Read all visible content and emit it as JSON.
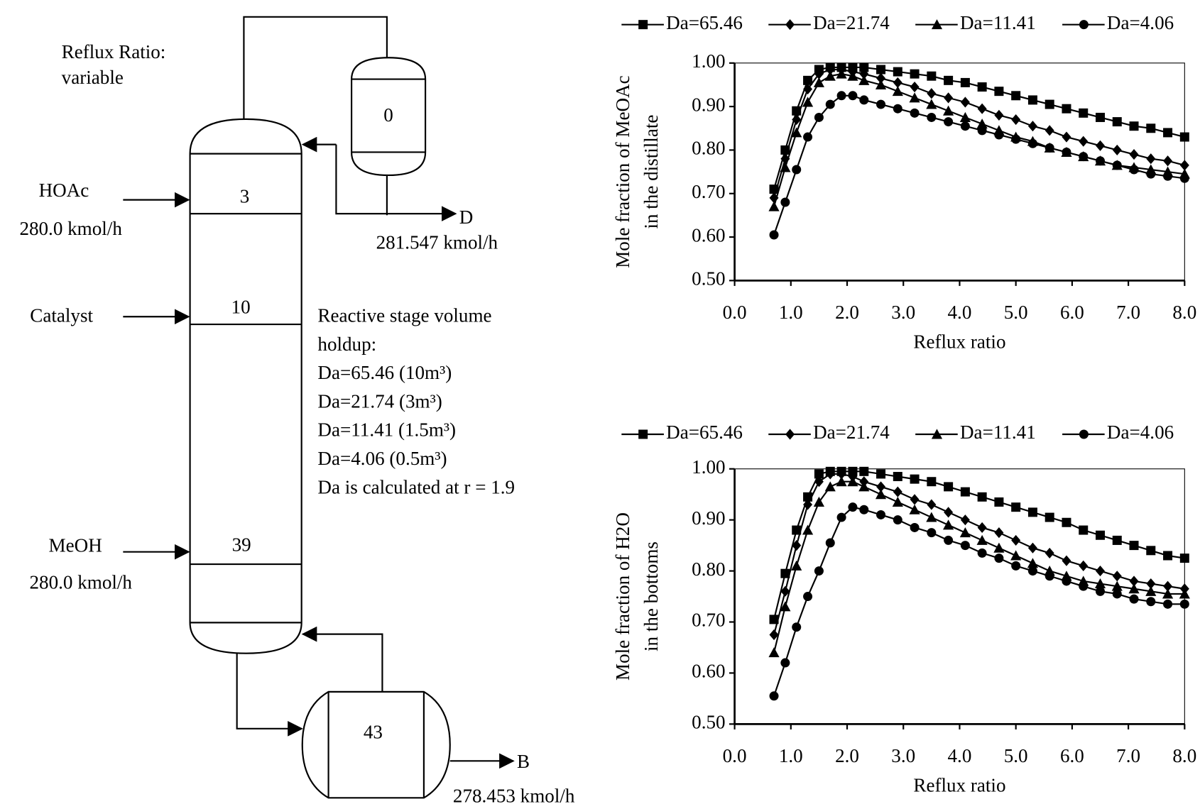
{
  "diagram": {
    "reflux_label": "Reflux Ratio:",
    "reflux_value": "variable",
    "condenser": "0",
    "reboiler": "43",
    "stages": [
      "3",
      "10",
      "39"
    ],
    "feeds": [
      {
        "name": "HOAc",
        "rate": "280.0 kmol/h"
      },
      {
        "name": "Catalyst"
      },
      {
        "name": "MeOH",
        "rate": "280.0 kmol/h"
      }
    ],
    "distillate": {
      "name": "D",
      "rate": "281.547 kmol/h"
    },
    "bottoms": {
      "name": "B",
      "rate": "278.453 kmol/h"
    },
    "holdup": [
      "Reactive stage volume",
      "holdup:",
      "Da=65.46 (10m³)",
      "Da=21.74 (3m³)",
      "Da=11.41 (1.5m³)",
      "Da=4.06 (0.5m³)",
      "Da is calculated at r = 1.9"
    ]
  },
  "chart_data": [
    {
      "type": "line",
      "xlabel": "Reflux ratio",
      "ylabel": [
        "Mole fraction of MeOAc",
        "in the distillate"
      ],
      "xlim": [
        0,
        8
      ],
      "ylim": [
        0.5,
        1
      ],
      "xticks": [
        {
          "value": 0,
          "label": "0.0"
        },
        {
          "value": 1,
          "label": "1.0"
        },
        {
          "value": 2,
          "label": "2.0"
        },
        {
          "value": 3,
          "label": "3.0"
        },
        {
          "value": 4,
          "label": "4.0"
        },
        {
          "value": 5,
          "label": "5.0"
        },
        {
          "value": 6,
          "label": "6.0"
        },
        {
          "value": 7,
          "label": "7.0"
        },
        {
          "value": 8,
          "label": "8.0"
        }
      ],
      "yticks": [
        {
          "value": 0.5,
          "label": "0.50"
        },
        {
          "value": 0.6,
          "label": "0.60"
        },
        {
          "value": 0.7,
          "label": "0.70"
        },
        {
          "value": 0.8,
          "label": "0.80"
        },
        {
          "value": 0.9,
          "label": "0.90"
        },
        {
          "value": 1,
          "label": "1.00"
        }
      ],
      "x": [
        0.7,
        0.9,
        1.1,
        1.3,
        1.5,
        1.7,
        1.9,
        2.1,
        2.3,
        2.6,
        2.9,
        3.2,
        3.5,
        3.8,
        4.1,
        4.4,
        4.7,
        5.0,
        5.3,
        5.6,
        5.9,
        6.2,
        6.5,
        6.8,
        7.1,
        7.4,
        7.7,
        8.0
      ],
      "series": [
        {
          "name": "Da=65.46",
          "color": "#000000",
          "marker": "square",
          "values": [
            0.71,
            0.8,
            0.89,
            0.96,
            0.985,
            0.99,
            0.99,
            0.99,
            0.99,
            0.985,
            0.98,
            0.975,
            0.97,
            0.96,
            0.955,
            0.945,
            0.935,
            0.925,
            0.915,
            0.905,
            0.895,
            0.885,
            0.875,
            0.865,
            0.855,
            0.85,
            0.84,
            0.83
          ]
        },
        {
          "name": "Da=21.74",
          "color": "#000000",
          "marker": "diamond",
          "values": [
            0.69,
            0.78,
            0.87,
            0.94,
            0.975,
            0.985,
            0.985,
            0.98,
            0.975,
            0.965,
            0.955,
            0.945,
            0.93,
            0.92,
            0.91,
            0.895,
            0.88,
            0.87,
            0.855,
            0.845,
            0.83,
            0.82,
            0.81,
            0.8,
            0.79,
            0.78,
            0.775,
            0.765
          ]
        },
        {
          "name": "Da=11.41",
          "color": "#000000",
          "marker": "triangle",
          "values": [
            0.67,
            0.76,
            0.84,
            0.91,
            0.955,
            0.97,
            0.975,
            0.97,
            0.96,
            0.95,
            0.935,
            0.92,
            0.905,
            0.89,
            0.875,
            0.86,
            0.845,
            0.83,
            0.82,
            0.805,
            0.795,
            0.785,
            0.775,
            0.765,
            0.76,
            0.755,
            0.75,
            0.745
          ]
        },
        {
          "name": "Da=4.06",
          "color": "#000000",
          "marker": "circle",
          "values": [
            0.605,
            0.68,
            0.755,
            0.83,
            0.875,
            0.905,
            0.925,
            0.925,
            0.915,
            0.905,
            0.895,
            0.885,
            0.875,
            0.865,
            0.855,
            0.845,
            0.835,
            0.825,
            0.815,
            0.805,
            0.795,
            0.785,
            0.775,
            0.765,
            0.755,
            0.745,
            0.74,
            0.735
          ]
        }
      ]
    },
    {
      "type": "line",
      "xlabel": "Reflux ratio",
      "ylabel": [
        "Mole fraction of H2O",
        "in the bottoms"
      ],
      "xlim": [
        0,
        8
      ],
      "ylim": [
        0.5,
        1
      ],
      "xticks": [
        {
          "value": 0,
          "label": "0.0"
        },
        {
          "value": 1,
          "label": "1.0"
        },
        {
          "value": 2,
          "label": "2.0"
        },
        {
          "value": 3,
          "label": "3.0"
        },
        {
          "value": 4,
          "label": "4.0"
        },
        {
          "value": 5,
          "label": "5.0"
        },
        {
          "value": 6,
          "label": "6.0"
        },
        {
          "value": 7,
          "label": "7.0"
        },
        {
          "value": 8,
          "label": "8.0"
        }
      ],
      "yticks": [
        {
          "value": 0.5,
          "label": "0.50"
        },
        {
          "value": 0.6,
          "label": "0.60"
        },
        {
          "value": 0.7,
          "label": "0.70"
        },
        {
          "value": 0.8,
          "label": "0.80"
        },
        {
          "value": 0.9,
          "label": "0.90"
        },
        {
          "value": 1,
          "label": "1.00"
        }
      ],
      "x": [
        0.7,
        0.9,
        1.1,
        1.3,
        1.5,
        1.7,
        1.9,
        2.1,
        2.3,
        2.6,
        2.9,
        3.2,
        3.5,
        3.8,
        4.1,
        4.4,
        4.7,
        5.0,
        5.3,
        5.6,
        5.9,
        6.2,
        6.5,
        6.8,
        7.1,
        7.4,
        7.7,
        8.0
      ],
      "series": [
        {
          "name": "Da=65.46",
          "color": "#000000",
          "marker": "square",
          "values": [
            0.705,
            0.795,
            0.88,
            0.945,
            0.99,
            0.995,
            0.995,
            0.995,
            0.995,
            0.99,
            0.985,
            0.98,
            0.975,
            0.965,
            0.955,
            0.945,
            0.935,
            0.925,
            0.915,
            0.905,
            0.895,
            0.88,
            0.87,
            0.86,
            0.85,
            0.84,
            0.83,
            0.825
          ]
        },
        {
          "name": "Da=21.74",
          "color": "#000000",
          "marker": "diamond",
          "values": [
            0.675,
            0.76,
            0.85,
            0.93,
            0.975,
            0.99,
            0.99,
            0.985,
            0.975,
            0.965,
            0.955,
            0.94,
            0.93,
            0.915,
            0.9,
            0.885,
            0.875,
            0.86,
            0.845,
            0.835,
            0.82,
            0.81,
            0.8,
            0.79,
            0.78,
            0.775,
            0.77,
            0.765
          ]
        },
        {
          "name": "Da=11.41",
          "color": "#000000",
          "marker": "triangle",
          "values": [
            0.64,
            0.73,
            0.81,
            0.88,
            0.935,
            0.965,
            0.975,
            0.975,
            0.965,
            0.95,
            0.935,
            0.92,
            0.905,
            0.89,
            0.875,
            0.86,
            0.845,
            0.83,
            0.815,
            0.8,
            0.79,
            0.78,
            0.775,
            0.77,
            0.765,
            0.76,
            0.755,
            0.755
          ]
        },
        {
          "name": "Da=4.06",
          "color": "#000000",
          "marker": "circle",
          "values": [
            0.555,
            0.62,
            0.69,
            0.75,
            0.8,
            0.855,
            0.905,
            0.925,
            0.92,
            0.91,
            0.9,
            0.885,
            0.875,
            0.86,
            0.85,
            0.835,
            0.825,
            0.81,
            0.8,
            0.79,
            0.78,
            0.77,
            0.76,
            0.755,
            0.745,
            0.74,
            0.735,
            0.735
          ]
        }
      ]
    }
  ]
}
